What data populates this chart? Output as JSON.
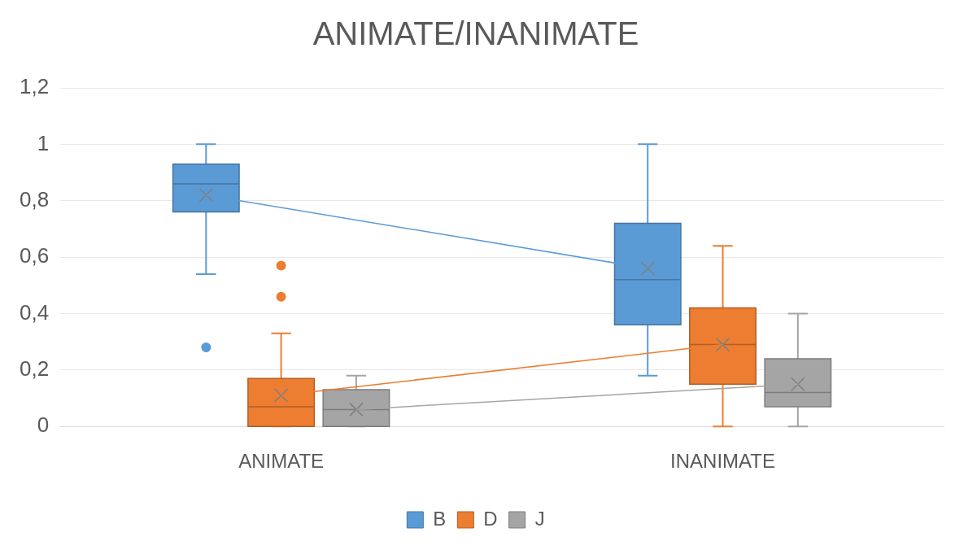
{
  "chart_data": {
    "type": "box",
    "title": "ANIMATE/INANIMATE",
    "categories": [
      "ANIMATE",
      "INANIMATE"
    ],
    "ylim": [
      0,
      1.2
    ],
    "yticks": [
      0,
      {
        "value": 0.2,
        "label": "0,2"
      },
      {
        "value": 0.4,
        "label": "0,4"
      },
      {
        "value": 0.6,
        "label": "0,6"
      },
      {
        "value": 0.8,
        "label": "0,8"
      },
      1,
      {
        "value": 1.2,
        "label": "1,2"
      }
    ],
    "grid": "y",
    "legend": "bottom",
    "series": [
      {
        "name": "B",
        "color": "#5b9bd5",
        "boxes": [
          {
            "low": 0.54,
            "q1": 0.76,
            "median": 0.86,
            "q3": 0.93,
            "high": 1.0,
            "mean": 0.82,
            "outliers": [
              0.28
            ]
          },
          {
            "low": 0.18,
            "q1": 0.36,
            "median": 0.52,
            "q3": 0.72,
            "high": 1.0,
            "mean": 0.56
          }
        ]
      },
      {
        "name": "D",
        "color": "#ed7d31",
        "boxes": [
          {
            "low": 0,
            "q1": 0,
            "median": 0.07,
            "q3": 0.17,
            "high": 0.33,
            "mean": 0.11,
            "outliers": [
              0.46,
              0.57
            ]
          },
          {
            "low": 0,
            "q1": 0.15,
            "median": 0.29,
            "q3": 0.42,
            "high": 0.64,
            "mean": 0.29
          }
        ]
      },
      {
        "name": "J",
        "color": "#a5a5a5",
        "boxes": [
          {
            "low": 0,
            "q1": 0,
            "median": 0.06,
            "q3": 0.13,
            "high": 0.18,
            "mean": 0.06
          },
          {
            "low": 0,
            "q1": 0.07,
            "median": 0.12,
            "q3": 0.24,
            "high": 0.4,
            "mean": 0.15
          }
        ]
      },
      {
        "type": "line",
        "color": "#5b9bd5",
        "values": [
          0.82,
          0.56
        ]
      },
      {
        "type": "line",
        "color": "#ed7d31",
        "values": [
          0.11,
          0.29
        ]
      },
      {
        "type": "line",
        "color": "#a5a5a5",
        "values": [
          0.06,
          0.15
        ]
      }
    ]
  }
}
